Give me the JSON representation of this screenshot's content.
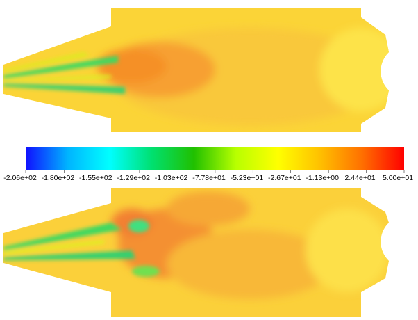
{
  "colorbar": {
    "range": [
      -206,
      50
    ],
    "colors": [
      "#1010ff",
      "#00b4ff",
      "#00ffff",
      "#00e070",
      "#20c000",
      "#b8ff00",
      "#ffff00",
      "#ffc000",
      "#ff7000",
      "#ff0000"
    ],
    "ticks": [
      {
        "value": -206,
        "label": "-2.06e+02"
      },
      {
        "value": -180,
        "label": "-1.80e+02"
      },
      {
        "value": -155,
        "label": "-1.55e+02"
      },
      {
        "value": -129,
        "label": "-1.29e+02"
      },
      {
        "value": -103,
        "label": "-1.03e+02"
      },
      {
        "value": -77.8,
        "label": "-7.78e+01"
      },
      {
        "value": -52.3,
        "label": "-5.23e+01"
      },
      {
        "value": -26.7,
        "label": "-2.67e+01"
      },
      {
        "value": -1.13,
        "label": "-1.13e+00"
      },
      {
        "value": 24.4,
        "label": "2.44e+01"
      },
      {
        "value": 50,
        "label": "5.00e+01"
      }
    ]
  }
}
